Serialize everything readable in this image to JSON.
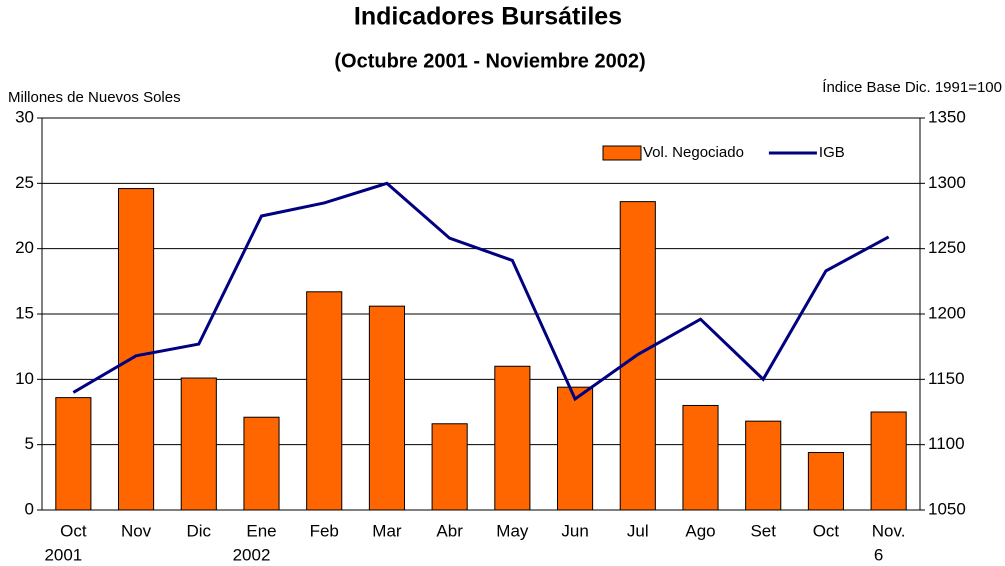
{
  "chart_data": {
    "type": "bar_line",
    "title": "Indicadores Bursátiles",
    "subtitle": "(Octubre 2001 - Noviembre 2002)",
    "y_label": "Millones de Nuevos Soles",
    "y2_label": "Índice Base Dic. 1991=100",
    "categories": [
      [
        "Oct",
        "2001"
      ],
      [
        "Nov"
      ],
      [
        "Dic"
      ],
      [
        "Ene",
        "2002"
      ],
      [
        "Feb"
      ],
      [
        "Mar"
      ],
      [
        "Abr"
      ],
      [
        "May"
      ],
      [
        "Jun"
      ],
      [
        "Jul"
      ],
      [
        "Ago"
      ],
      [
        "Set"
      ],
      [
        "Oct"
      ],
      [
        "Nov.",
        "6"
      ]
    ],
    "series": [
      {
        "name": "Vol. Negociado",
        "type": "bar",
        "color": "#ff6600",
        "values": [
          8.6,
          24.6,
          10.1,
          7.1,
          16.7,
          15.6,
          6.6,
          11.0,
          9.4,
          23.6,
          8.0,
          6.8,
          4.4,
          7.5
        ]
      },
      {
        "name": "IGB",
        "type": "line",
        "color": "#000080",
        "axis": "y2",
        "values": [
          1140,
          1168,
          1177,
          1275,
          1285,
          1300,
          1258,
          1241,
          1135,
          1169,
          1196,
          1150,
          1233,
          1259
        ]
      }
    ],
    "ylim": [
      0,
      30
    ],
    "yticks": [
      0,
      5,
      10,
      15,
      20,
      25,
      30
    ],
    "y2lim": [
      1050,
      1350
    ],
    "y2ticks": [
      1050,
      1100,
      1150,
      1200,
      1250,
      1300,
      1350
    ],
    "grid": true,
    "legend": "upper right"
  }
}
